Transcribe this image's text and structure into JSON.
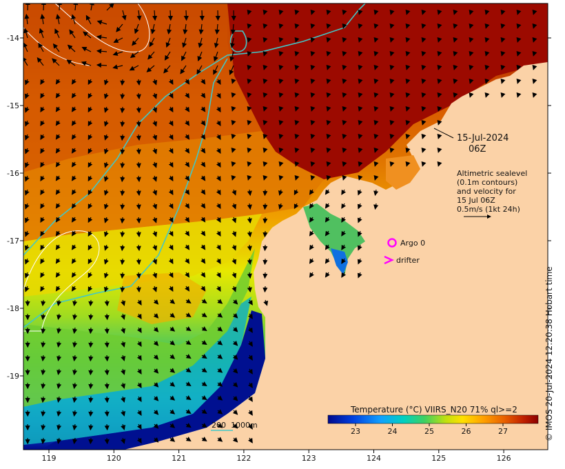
{
  "map": {
    "date_label": "15-Jul-2024",
    "time_label": "06Z",
    "altimetry_lines": [
      "Altimetric sealevel",
      "(0.1m contours)",
      "and velocity for",
      "15 Jul 06Z",
      "0.5m/s (1kt 24h)"
    ],
    "legend_argo": "Argo 0",
    "legend_drifter": "drifter",
    "bathy_scale": "200  1000m",
    "colorbar": {
      "title": "Temperature (°C) VIIRS_N20 71% ql>=2",
      "ticks": [
        "23",
        "24",
        "25",
        "26",
        "27"
      ],
      "colors": [
        "#000a8c",
        "#0030d8",
        "#1f8cff",
        "#00c8e0",
        "#3ad07a",
        "#8cdc28",
        "#e8f000",
        "#ffc800",
        "#f08c00",
        "#d85000",
        "#b02000",
        "#8c0000"
      ]
    },
    "lon_ticks": [
      "119",
      "120",
      "121",
      "122",
      "123",
      "124",
      "125",
      "126"
    ],
    "lat_ticks": [
      "-14",
      "-15",
      "-16",
      "-17",
      "-18",
      "-19"
    ],
    "credit": "© IMOS 20-Jul-2024 12:20:38 Hobart time",
    "colors": {
      "land": "#fbd2a7",
      "isobath": "#40c8c8",
      "marker": "#ff00ff",
      "hot_sst": "#9c0a00"
    }
  }
}
